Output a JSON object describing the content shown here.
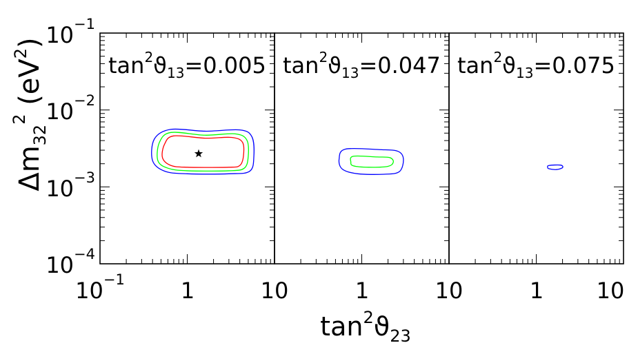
{
  "chart_data": [
    {
      "type": "contour",
      "title": "tan²ϑ₁₃=0.005",
      "title_parts": {
        "base": "tan",
        "sup": "2",
        "sym": "ϑ",
        "sub": "13",
        "rest": "=0.005"
      },
      "xlabel": "tan²ϑ₂₃",
      "ylabel": "Δm₃₂² (eV²)",
      "x_scale": "log",
      "y_scale": "log",
      "xlim": [
        0.1,
        10
      ],
      "ylim": [
        0.0001,
        0.1
      ],
      "best_fit": {
        "x": 1.35,
        "y": 0.0027,
        "marker": "star"
      },
      "series": [
        {
          "color": "#0000ff",
          "points": [
            [
              0.65,
              0.0056
            ],
            [
              1.6,
              0.0053
            ],
            [
              4.0,
              0.0055
            ],
            [
              5.5,
              0.0045
            ],
            [
              5.8,
              0.0025
            ],
            [
              5.2,
              0.0016
            ],
            [
              3.0,
              0.00148
            ],
            [
              1.0,
              0.00148
            ],
            [
              0.55,
              0.0016
            ],
            [
              0.4,
              0.0022
            ],
            [
              0.42,
              0.0042
            ]
          ]
        },
        {
          "color": "#00ff00",
          "points": [
            [
              0.65,
              0.0051
            ],
            [
              1.6,
              0.0047
            ],
            [
              3.5,
              0.0049
            ],
            [
              4.8,
              0.0041
            ],
            [
              5.0,
              0.0025
            ],
            [
              4.5,
              0.00175
            ],
            [
              3.0,
              0.00162
            ],
            [
              1.0,
              0.00162
            ],
            [
              0.6,
              0.00175
            ],
            [
              0.46,
              0.0022
            ],
            [
              0.48,
              0.0038
            ]
          ]
        },
        {
          "color": "#ff0000",
          "points": [
            [
              0.7,
              0.0046
            ],
            [
              1.6,
              0.0043
            ],
            [
              3.2,
              0.0044
            ],
            [
              4.3,
              0.0038
            ],
            [
              4.4,
              0.0025
            ],
            [
              4.0,
              0.0019
            ],
            [
              3.0,
              0.0018
            ],
            [
              1.0,
              0.0018
            ],
            [
              0.65,
              0.0019
            ],
            [
              0.52,
              0.0024
            ],
            [
              0.55,
              0.0036
            ]
          ]
        }
      ]
    },
    {
      "type": "contour",
      "title": "tan²ϑ₁₃=0.047",
      "title_parts": {
        "base": "tan",
        "sup": "2",
        "sym": "ϑ",
        "sub": "13",
        "rest": "=0.047"
      },
      "xlabel": "tan²ϑ₂₃",
      "x_scale": "log",
      "y_scale": "log",
      "xlim": [
        0.1,
        10
      ],
      "ylim": [
        0.0001,
        0.1
      ],
      "series": [
        {
          "color": "#0000ff",
          "points": [
            [
              0.65,
              0.0031
            ],
            [
              1.6,
              0.00305
            ],
            [
              2.6,
              0.0029
            ],
            [
              3.0,
              0.0023
            ],
            [
              2.7,
              0.00158
            ],
            [
              1.8,
              0.00146
            ],
            [
              0.9,
              0.00148
            ],
            [
              0.6,
              0.0017
            ],
            [
              0.55,
              0.0023
            ]
          ]
        },
        {
          "color": "#00ff00",
          "points": [
            [
              0.8,
              0.0025
            ],
            [
              1.5,
              0.00245
            ],
            [
              2.1,
              0.0024
            ],
            [
              2.3,
              0.0021
            ],
            [
              2.0,
              0.00185
            ],
            [
              1.2,
              0.0018
            ],
            [
              0.8,
              0.00188
            ],
            [
              0.75,
              0.0021
            ]
          ]
        }
      ]
    },
    {
      "type": "contour",
      "title": "tan²ϑ₁₃=0.075",
      "title_parts": {
        "base": "tan",
        "sup": "2",
        "sym": "ϑ",
        "sub": "13",
        "rest": "=0.075"
      },
      "xlabel": "tan²ϑ₂₃",
      "x_scale": "log",
      "y_scale": "log",
      "xlim": [
        0.1,
        10
      ],
      "ylim": [
        0.0001,
        0.1
      ],
      "series": [
        {
          "color": "#0000ff",
          "points": [
            [
              1.4,
              0.0019
            ],
            [
              1.9,
              0.00192
            ],
            [
              2.0,
              0.00178
            ],
            [
              1.7,
              0.00168
            ],
            [
              1.4,
              0.00172
            ],
            [
              1.35,
              0.0018
            ]
          ]
        }
      ]
    }
  ],
  "axes": {
    "xlabel_parts": {
      "base": "tan",
      "sup": "2",
      "sym": "ϑ",
      "sub": "23"
    },
    "ylabel_parts": {
      "pre": "Δm",
      "sub": "32",
      "sup": "2",
      "post": " (eV",
      "post_sup": "2",
      "close": ")"
    },
    "y_ticks": [
      {
        "base": "10",
        "exp": "−1"
      },
      {
        "base": "10",
        "exp": "−2"
      },
      {
        "base": "10",
        "exp": "−3"
      },
      {
        "base": "10",
        "exp": "−4"
      }
    ],
    "x_ticks_panel1": [
      {
        "base": "10",
        "exp": "−1"
      },
      {
        "base": "1",
        "exp": ""
      },
      {
        "base": "10",
        "exp": ""
      }
    ],
    "x_ticks_panel": [
      {
        "base": "1",
        "exp": ""
      },
      {
        "base": "10",
        "exp": ""
      }
    ]
  }
}
